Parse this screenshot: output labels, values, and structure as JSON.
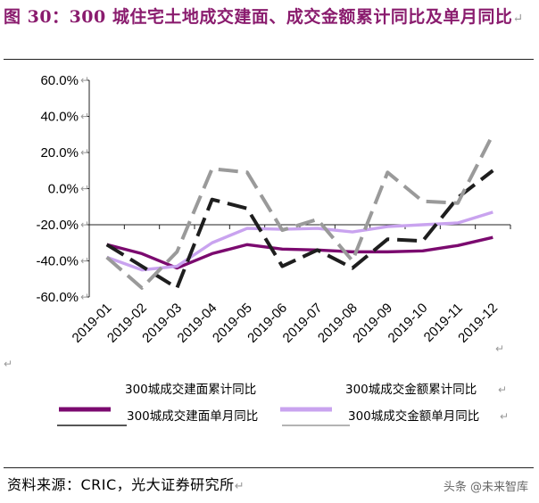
{
  "title": {
    "prefix": "图 30：",
    "text": "300 城住宅土地成交建面、成交金额累计同比及单月同比"
  },
  "footer": {
    "source": "资料来源：CRIC，光大证券研究所"
  },
  "watermark": "头条 @未来智库",
  "chart_data": {
    "type": "line",
    "categories": [
      "2019-01",
      "2019-02",
      "2019-03",
      "2019-04",
      "2019-05",
      "2019-06",
      "2019-07",
      "2019-08",
      "2019-09",
      "2019-10",
      "2019-11",
      "2019-12"
    ],
    "ylim": [
      -60,
      60
    ],
    "yticks": [
      -60,
      -40,
      -20,
      0,
      20,
      40,
      60
    ],
    "ytick_labels": [
      "-60.0%",
      "-40.0%",
      "-20.0%",
      "0.0%",
      "20.0%",
      "40.0%",
      "60.0%"
    ],
    "legend_position": "bottom",
    "series": [
      {
        "name": "300城成交建面累计同比",
        "color": "#7b0a6f",
        "style": "solid",
        "values": [
          -31,
          -36,
          -44,
          -36,
          -31,
          -33.5,
          -34,
          -35,
          -35,
          -34.5,
          -31.5,
          -27
        ]
      },
      {
        "name": "300城成交金额累计同比",
        "color": "#c9a3ef",
        "style": "solid",
        "values": [
          -38,
          -45,
          -43,
          -30,
          -22,
          -22.5,
          -22,
          -24,
          -21,
          -20,
          -19,
          -13
        ]
      },
      {
        "name": "300城成交建面单月同比",
        "color": "#1e1e1e",
        "style": "dashed",
        "values": [
          -31,
          -43,
          -55,
          -6,
          -11,
          -43,
          -34,
          -44,
          -28,
          -29,
          -5,
          10
        ]
      },
      {
        "name": "300城成交金额单月同比",
        "color": "#9a9a9a",
        "style": "dashed",
        "values": [
          -38,
          -55,
          -35,
          11,
          9,
          -23,
          -17,
          -40,
          9,
          -7,
          -8,
          30
        ]
      }
    ]
  }
}
